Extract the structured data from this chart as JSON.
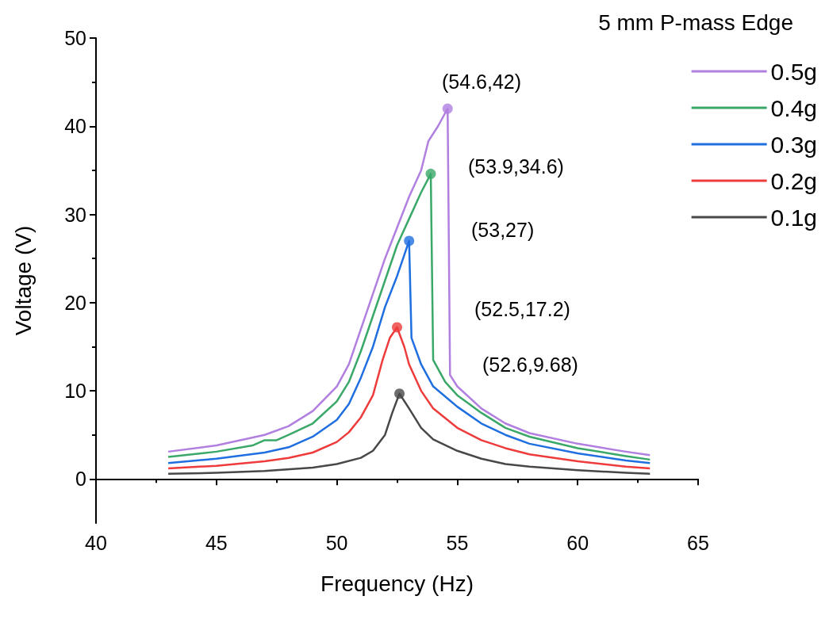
{
  "chart_data": {
    "type": "line",
    "xlabel": "Frequency (Hz)",
    "ylabel": "Voltage (V)",
    "legend_title": "5 mm P-mass Edge",
    "legend": "top right",
    "marker": "none",
    "line_style": "solid",
    "xlim": [
      40,
      65
    ],
    "xticks": [
      40,
      45,
      50,
      55,
      60,
      65
    ],
    "ylim": [
      -5,
      50
    ],
    "yticks": [
      0,
      10,
      20,
      30,
      40,
      50
    ],
    "series": [
      {
        "name": "0.5g",
        "color": "#b07fe0",
        "x": [
          43,
          45,
          47,
          48,
          49,
          50,
          50.5,
          51,
          51.5,
          52,
          52.5,
          53,
          53.5,
          53.8,
          54.2,
          54.6,
          54.7,
          55,
          56,
          57,
          58,
          60,
          62,
          63
        ],
        "values": [
          3.1,
          3.8,
          5.0,
          6.0,
          7.7,
          10.5,
          13,
          17,
          21,
          25,
          28.5,
          32,
          35,
          38.3,
          40,
          42,
          11.8,
          10.5,
          8,
          6.3,
          5.2,
          4,
          3.1,
          2.7
        ]
      },
      {
        "name": "0.4g",
        "color": "#3aa868",
        "x": [
          43,
          45,
          46.5,
          47,
          47.5,
          48,
          49,
          50,
          50.5,
          51,
          51.5,
          52,
          52.5,
          53,
          53.5,
          53.9,
          54,
          54.5,
          55,
          56,
          57,
          58,
          60,
          62,
          63
        ],
        "values": [
          2.5,
          3.1,
          3.8,
          4.4,
          4.4,
          5,
          6.3,
          8.8,
          11,
          14.5,
          18.5,
          22.5,
          26.5,
          29.5,
          32.5,
          34.6,
          13.5,
          11,
          9.5,
          7.5,
          5.8,
          4.8,
          3.5,
          2.6,
          2.2
        ]
      },
      {
        "name": "0.3g",
        "color": "#1f6fe0",
        "x": [
          43,
          45,
          47,
          48,
          49,
          50,
          50.5,
          51,
          51.5,
          52,
          52.5,
          53,
          53.1,
          53.5,
          54,
          55,
          56,
          57,
          58,
          60,
          62,
          63
        ],
        "values": [
          1.8,
          2.3,
          3.0,
          3.6,
          4.8,
          6.7,
          8.5,
          11.5,
          15,
          19.5,
          23,
          27,
          16,
          13,
          10.5,
          8.2,
          6.3,
          5,
          4,
          2.9,
          2.1,
          1.8
        ]
      },
      {
        "name": "0.2g",
        "color": "#ee3b3b",
        "x": [
          43,
          45,
          47,
          48,
          49,
          50,
          50.5,
          51,
          51.5,
          51.9,
          52.2,
          52.5,
          52.8,
          53,
          53.5,
          54,
          55,
          56,
          57,
          58,
          60,
          62,
          63
        ],
        "values": [
          1.2,
          1.5,
          2.0,
          2.4,
          3.0,
          4.2,
          5.3,
          7,
          9.5,
          13.5,
          16,
          17.2,
          15,
          13,
          10,
          8,
          5.8,
          4.4,
          3.5,
          2.8,
          2.0,
          1.4,
          1.2
        ]
      },
      {
        "name": "0.1g",
        "color": "#484848",
        "x": [
          43,
          45,
          47,
          49,
          50,
          51,
          51.5,
          52,
          52.3,
          52.6,
          53,
          53.5,
          54,
          55,
          56,
          57,
          58,
          60,
          62,
          63
        ],
        "values": [
          0.6,
          0.7,
          0.9,
          1.3,
          1.7,
          2.4,
          3.2,
          5,
          7.5,
          9.68,
          8,
          5.8,
          4.5,
          3.2,
          2.3,
          1.7,
          1.4,
          1.0,
          0.7,
          0.6
        ]
      },
      {
        "type": "scatter",
        "marker": "circle",
        "color": "#b07fe0",
        "x": [
          54.6
        ],
        "values": [
          42
        ]
      },
      {
        "type": "scatter",
        "marker": "circle",
        "color": "#3aa868",
        "x": [
          53.9
        ],
        "values": [
          34.6
        ]
      },
      {
        "type": "scatter",
        "marker": "circle",
        "color": "#1f6fe0",
        "x": [
          53
        ],
        "values": [
          27
        ]
      },
      {
        "type": "scatter",
        "marker": "circle",
        "color": "#ee3b3b",
        "x": [
          52.5
        ],
        "values": [
          17.2
        ]
      },
      {
        "type": "scatter",
        "marker": "circle",
        "color": "#484848",
        "x": [
          52.6
        ],
        "values": [
          9.68
        ]
      }
    ],
    "annotations": [
      "(54.6,42)",
      "(53.9,34.6)",
      "(53,27)",
      "(52.5,17.2)",
      "(52.6,9.68)"
    ]
  }
}
